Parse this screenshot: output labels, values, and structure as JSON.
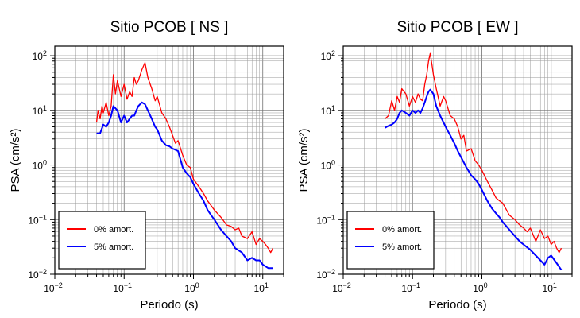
{
  "chart_data": [
    {
      "type": "line",
      "title": "Sitio PCOB [ NS ]",
      "xlabel": "Periodo (s)",
      "ylabel": "PSA (cm/s²)",
      "xscale": "log",
      "yscale": "log",
      "xlim": [
        0.01,
        20
      ],
      "ylim": [
        0.01,
        150
      ],
      "grid": true,
      "legend_placement": "bottom-left",
      "x_ticks": [
        {
          "base": "10",
          "exp": "−2"
        },
        {
          "base": "10",
          "exp": "−1"
        },
        {
          "base": "10",
          "exp": "0"
        },
        {
          "base": "10",
          "exp": "1"
        }
      ],
      "y_ticks": [
        {
          "base": "10",
          "exp": "−2"
        },
        {
          "base": "10",
          "exp": "−1"
        },
        {
          "base": "10",
          "exp": "0"
        },
        {
          "base": "10",
          "exp": "1"
        },
        {
          "base": "10",
          "exp": "2"
        }
      ],
      "series": [
        {
          "name": "0% amort.",
          "color": "#ff0000",
          "x": [
            0.04,
            0.042,
            0.045,
            0.048,
            0.05,
            0.055,
            0.06,
            0.065,
            0.07,
            0.075,
            0.08,
            0.09,
            0.1,
            0.11,
            0.12,
            0.13,
            0.14,
            0.15,
            0.16,
            0.18,
            0.2,
            0.22,
            0.25,
            0.28,
            0.3,
            0.35,
            0.4,
            0.45,
            0.5,
            0.55,
            0.6,
            0.7,
            0.8,
            0.9,
            1.0,
            1.2,
            1.4,
            1.6,
            1.8,
            2.0,
            2.5,
            3.0,
            3.5,
            4.0,
            4.5,
            5.0,
            6.0,
            7.0,
            8.0,
            9.0,
            10.0,
            11.0,
            12.0,
            13.0,
            14.0
          ],
          "y": [
            6,
            10,
            7,
            12,
            9,
            14,
            8,
            12,
            45,
            20,
            35,
            18,
            30,
            16,
            22,
            18,
            40,
            30,
            35,
            55,
            75,
            40,
            25,
            15,
            18,
            9,
            7,
            5,
            3.5,
            2.5,
            2.8,
            1.5,
            1.0,
            0.9,
            0.55,
            0.4,
            0.3,
            0.22,
            0.18,
            0.15,
            0.11,
            0.08,
            0.075,
            0.065,
            0.07,
            0.05,
            0.045,
            0.06,
            0.035,
            0.045,
            0.04,
            0.035,
            0.03,
            0.025,
            0.03
          ]
        },
        {
          "name": "5% amort.",
          "color": "#0000ff",
          "x": [
            0.04,
            0.045,
            0.05,
            0.055,
            0.06,
            0.065,
            0.07,
            0.08,
            0.09,
            0.1,
            0.11,
            0.12,
            0.13,
            0.14,
            0.15,
            0.16,
            0.18,
            0.2,
            0.22,
            0.25,
            0.28,
            0.3,
            0.35,
            0.4,
            0.45,
            0.5,
            0.6,
            0.7,
            0.8,
            0.9,
            1.0,
            1.2,
            1.4,
            1.6,
            1.8,
            2.0,
            2.5,
            3.0,
            3.5,
            4.0,
            5.0,
            6.0,
            7.0,
            8.0,
            9.0,
            10.0,
            12.0,
            14.0
          ],
          "y": [
            3.8,
            3.8,
            5.5,
            5,
            6,
            8,
            12,
            10,
            6,
            8,
            6,
            7,
            8,
            8,
            10,
            12,
            14,
            13,
            10,
            7,
            5,
            4.5,
            2.8,
            2.3,
            2.2,
            2.0,
            1.8,
            0.9,
            0.7,
            0.6,
            0.45,
            0.3,
            0.22,
            0.15,
            0.12,
            0.1,
            0.065,
            0.05,
            0.04,
            0.03,
            0.025,
            0.018,
            0.02,
            0.018,
            0.018,
            0.015,
            0.013,
            0.013
          ]
        }
      ]
    },
    {
      "type": "line",
      "title": "Sitio PCOB [ EW ]",
      "xlabel": "Periodo (s)",
      "ylabel": "PSA (cm/s²)",
      "xscale": "log",
      "yscale": "log",
      "xlim": [
        0.01,
        20
      ],
      "ylim": [
        0.01,
        150
      ],
      "grid": true,
      "legend_placement": "bottom-left",
      "x_ticks": [
        {
          "base": "10",
          "exp": "−2"
        },
        {
          "base": "10",
          "exp": "−1"
        },
        {
          "base": "10",
          "exp": "0"
        },
        {
          "base": "10",
          "exp": "1"
        }
      ],
      "y_ticks": [
        {
          "base": "10",
          "exp": "−2"
        },
        {
          "base": "10",
          "exp": "−1"
        },
        {
          "base": "10",
          "exp": "0"
        },
        {
          "base": "10",
          "exp": "1"
        },
        {
          "base": "10",
          "exp": "2"
        }
      ],
      "series": [
        {
          "name": "0% amort.",
          "color": "#ff0000",
          "x": [
            0.04,
            0.045,
            0.05,
            0.055,
            0.06,
            0.065,
            0.07,
            0.08,
            0.09,
            0.1,
            0.11,
            0.12,
            0.13,
            0.14,
            0.15,
            0.16,
            0.17,
            0.18,
            0.19,
            0.2,
            0.22,
            0.25,
            0.28,
            0.3,
            0.35,
            0.4,
            0.45,
            0.5,
            0.55,
            0.6,
            0.7,
            0.8,
            0.9,
            1.0,
            1.2,
            1.4,
            1.6,
            1.8,
            2.0,
            2.5,
            3.0,
            3.5,
            4.0,
            4.5,
            5.0,
            6.0,
            7.0,
            8.0,
            9.0,
            10.0,
            11.0,
            12.0,
            13.0,
            14.0
          ],
          "y": [
            7,
            8,
            15,
            10,
            18,
            14,
            25,
            20,
            12,
            18,
            14,
            20,
            16,
            15,
            30,
            45,
            80,
            110,
            70,
            45,
            25,
            12,
            18,
            15,
            8,
            7,
            5,
            3,
            3.5,
            1.8,
            2.0,
            1.2,
            1.0,
            0.8,
            0.5,
            0.35,
            0.25,
            0.22,
            0.2,
            0.12,
            0.1,
            0.08,
            0.07,
            0.06,
            0.07,
            0.04,
            0.065,
            0.045,
            0.05,
            0.035,
            0.04,
            0.03,
            0.025,
            0.03
          ]
        },
        {
          "name": "5% amort.",
          "color": "#0000ff",
          "x": [
            0.04,
            0.045,
            0.05,
            0.055,
            0.06,
            0.065,
            0.07,
            0.08,
            0.09,
            0.1,
            0.11,
            0.12,
            0.13,
            0.14,
            0.15,
            0.16,
            0.17,
            0.18,
            0.2,
            0.22,
            0.25,
            0.28,
            0.3,
            0.35,
            0.4,
            0.45,
            0.5,
            0.6,
            0.7,
            0.8,
            0.9,
            1.0,
            1.2,
            1.4,
            1.6,
            1.8,
            2.0,
            2.5,
            3.0,
            3.5,
            4.0,
            5.0,
            6.0,
            7.0,
            8.0,
            9.0,
            10.0,
            12.0,
            14.0
          ],
          "y": [
            4.8,
            5.2,
            5.5,
            6,
            7,
            9,
            10,
            9,
            8,
            10,
            9,
            10,
            9,
            11,
            14,
            18,
            22,
            24,
            20,
            12,
            8,
            6,
            5,
            3.5,
            2.5,
            1.8,
            1.4,
            0.9,
            0.65,
            0.55,
            0.45,
            0.35,
            0.22,
            0.16,
            0.13,
            0.11,
            0.09,
            0.065,
            0.05,
            0.04,
            0.035,
            0.028,
            0.022,
            0.018,
            0.015,
            0.02,
            0.022,
            0.016,
            0.012
          ]
        }
      ]
    }
  ]
}
